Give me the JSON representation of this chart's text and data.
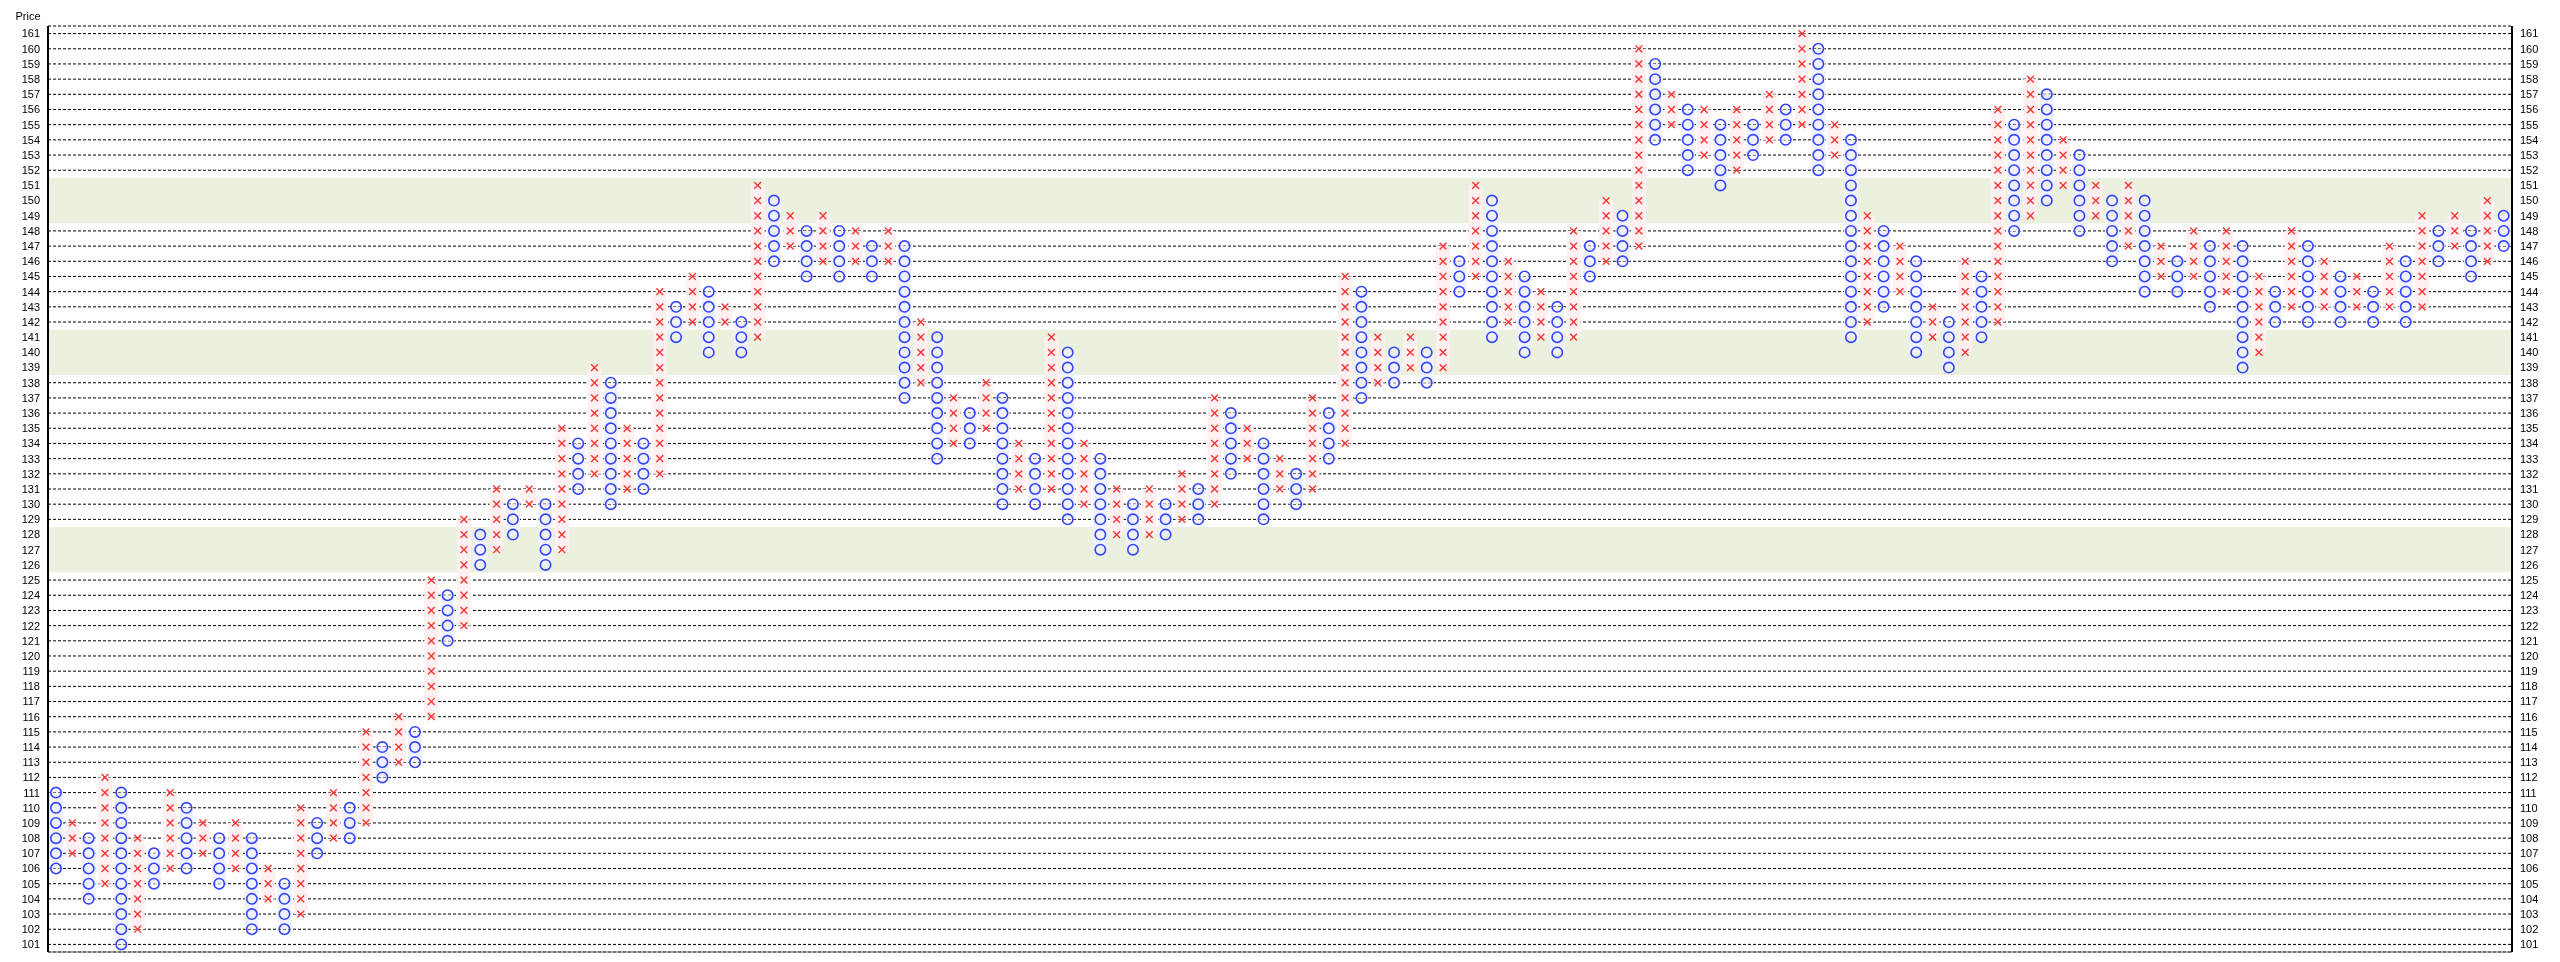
{
  "chart_data": {
    "type": "bar",
    "ylabel": "Price",
    "categories": [
      null,
      null,
      null,
      null,
      null,
      null,
      null,
      null,
      null,
      null,
      null,
      null,
      null,
      null,
      null,
      null,
      null,
      null,
      null,
      null,
      null,
      null,
      null,
      null,
      null,
      null,
      null,
      null,
      null,
      null,
      null,
      null,
      null,
      null,
      null,
      null,
      null,
      null,
      null,
      null,
      null,
      null,
      null,
      null,
      null,
      null,
      null,
      null,
      null,
      null,
      null,
      null,
      null,
      null,
      null,
      null,
      null,
      null,
      null,
      null,
      null,
      null,
      null,
      null,
      null,
      null,
      null,
      null,
      null,
      null,
      null,
      null,
      null,
      null,
      null,
      null,
      null,
      null,
      null,
      null,
      null,
      null,
      null,
      null,
      null,
      null,
      null,
      null,
      null,
      null,
      null,
      null,
      null,
      null,
      null,
      null,
      null,
      null,
      null,
      null,
      null,
      null,
      null,
      null,
      null,
      null,
      null,
      null,
      null,
      null,
      null,
      null,
      null,
      null,
      null,
      null,
      null,
      null,
      null,
      null,
      null,
      null,
      null,
      null,
      null,
      null,
      null,
      null,
      null,
      null,
      null,
      null,
      null,
      null,
      null,
      null,
      null,
      null,
      null,
      null,
      null,
      null,
      null,
      null,
      null,
      null,
      null,
      null,
      null,
      null,
      null
    ],
    "series": [
      {
        "color": "#ff3333",
        "marker": "cross",
        "base": [
          null,
          107,
          null,
          105,
          null,
          102,
          null,
          106,
          null,
          107,
          null,
          106,
          null,
          104,
          null,
          103,
          null,
          108,
          null,
          109,
          null,
          113,
          null,
          116,
          null,
          122,
          null,
          127,
          null,
          130,
          null,
          127,
          null,
          132,
          null,
          131,
          null,
          132,
          null,
          142,
          null,
          142,
          null,
          141,
          null,
          147,
          null,
          146,
          null,
          146,
          null,
          146,
          null,
          138,
          null,
          134,
          null,
          135,
          null,
          131,
          null,
          131,
          null,
          130,
          null,
          128,
          null,
          128,
          null,
          129,
          null,
          130,
          null,
          133,
          null,
          131,
          null,
          131,
          null,
          134,
          null,
          138,
          null,
          139,
          null,
          139,
          null,
          145,
          null,
          142,
          null,
          141,
          null,
          141,
          null,
          146,
          null,
          147,
          null,
          155,
          null,
          153,
          null,
          152,
          null,
          154,
          null,
          155,
          null,
          153,
          null,
          142,
          null,
          144,
          null,
          141,
          null,
          140,
          null,
          142,
          null,
          149,
          null,
          151,
          null,
          149,
          null,
          147,
          null,
          145,
          null,
          145,
          null,
          144,
          null,
          140,
          null,
          143,
          null,
          143,
          null,
          143,
          null,
          143,
          null,
          143,
          null,
          147,
          null,
          146,
          null
        ],
        "values": [
          null,
          2,
          null,
          7,
          null,
          6,
          null,
          5,
          null,
          2,
          null,
          3,
          null,
          2,
          null,
          7,
          null,
          3,
          null,
          6,
          null,
          3,
          null,
          9,
          null,
          7,
          null,
          4,
          null,
          1,
          null,
          8,
          null,
          7,
          null,
          4,
          null,
          12,
          null,
          3,
          null,
          1,
          null,
          10,
          null,
          2,
          null,
          3,
          null,
          2,
          null,
          2,
          null,
          4,
          null,
          3,
          null,
          3,
          null,
          3,
          null,
          10,
          null,
          4,
          null,
          3,
          null,
          3,
          null,
          3,
          null,
          7,
          null,
          2,
          null,
          2,
          null,
          6,
          null,
          11,
          null,
          3,
          null,
          2,
          null,
          8,
          null,
          6,
          null,
          4,
          null,
          3,
          null,
          7,
          null,
          4,
          null,
          13,
          null,
          2,
          null,
          3,
          null,
          4,
          null,
          3,
          null,
          6,
          null,
          2,
          null,
          7,
          null,
          3,
          null,
          2,
          null,
          6,
          null,
          14,
          null,
          9,
          null,
          3,
          null,
          2,
          null,
          4,
          null,
          2,
          null,
          3,
          null,
          4,
          null,
          5,
          null,
          5,
          null,
          3,
          null,
          2,
          null,
          4,
          null,
          6,
          null,
          2,
          null,
          4,
          null
        ]
      },
      {
        "color": "#3344ff",
        "marker": "circle",
        "base": [
          106,
          null,
          104,
          null,
          101,
          null,
          105,
          null,
          106,
          null,
          105,
          null,
          102,
          null,
          102,
          null,
          107,
          null,
          108,
          null,
          112,
          null,
          113,
          null,
          121,
          null,
          126,
          null,
          128,
          null,
          126,
          null,
          131,
          null,
          130,
          null,
          131,
          null,
          141,
          null,
          140,
          null,
          140,
          null,
          146,
          null,
          145,
          null,
          145,
          null,
          145,
          null,
          137,
          null,
          133,
          null,
          134,
          null,
          130,
          null,
          130,
          null,
          129,
          null,
          127,
          null,
          127,
          null,
          128,
          null,
          129,
          null,
          132,
          null,
          129,
          null,
          130,
          null,
          133,
          null,
          137,
          null,
          138,
          null,
          138,
          null,
          144,
          null,
          141,
          null,
          140,
          null,
          140,
          null,
          145,
          null,
          146,
          null,
          154,
          null,
          152,
          null,
          151,
          null,
          153,
          null,
          154,
          null,
          152,
          null,
          141,
          null,
          143,
          null,
          140,
          null,
          139,
          null,
          141,
          null,
          148,
          null,
          150,
          null,
          148,
          null,
          146,
          null,
          144,
          null,
          144,
          null,
          143,
          null,
          139,
          null,
          142,
          null,
          142,
          null,
          142,
          null,
          142,
          null,
          142,
          null,
          146,
          null,
          145,
          null,
          147
        ],
        "values": [
          5,
          null,
          4,
          null,
          10,
          null,
          2,
          null,
          4,
          null,
          3,
          null,
          6,
          null,
          3,
          null,
          2,
          null,
          2,
          null,
          2,
          null,
          2,
          null,
          3,
          null,
          2,
          null,
          2,
          null,
          4,
          null,
          3,
          null,
          8,
          null,
          3,
          null,
          2,
          null,
          4,
          null,
          2,
          null,
          4,
          null,
          3,
          null,
          3,
          null,
          2,
          null,
          10,
          null,
          8,
          null,
          2,
          null,
          7,
          null,
          3,
          null,
          11,
          null,
          6,
          null,
          3,
          null,
          2,
          null,
          2,
          null,
          4,
          null,
          5,
          null,
          2,
          null,
          3,
          null,
          7,
          null,
          2,
          null,
          2,
          null,
          2,
          null,
          9,
          null,
          5,
          null,
          3,
          null,
          2,
          null,
          3,
          null,
          5,
          null,
          4,
          null,
          4,
          null,
          2,
          null,
          2,
          null,
          8,
          null,
          13,
          null,
          5,
          null,
          6,
          null,
          3,
          null,
          4,
          null,
          7,
          null,
          7,
          null,
          5,
          null,
          4,
          null,
          6,
          null,
          2,
          null,
          4,
          null,
          8,
          null,
          2,
          null,
          5,
          null,
          3,
          null,
          2,
          null,
          4,
          null,
          2,
          null,
          3,
          null,
          2
        ]
      }
    ],
    "ylim": [
      100.5,
      161.5
    ],
    "yticks": [
      101,
      102,
      103,
      104,
      105,
      106,
      107,
      108,
      109,
      110,
      111,
      112,
      113,
      114,
      115,
      116,
      117,
      118,
      119,
      120,
      121,
      122,
      123,
      124,
      125,
      126,
      127,
      128,
      129,
      130,
      131,
      132,
      133,
      134,
      135,
      136,
      137,
      138,
      139,
      140,
      141,
      142,
      143,
      144,
      145,
      146,
      147,
      148,
      149,
      150,
      151,
      152,
      153,
      154,
      155,
      156,
      157,
      158,
      159,
      160,
      161
    ],
    "y2lim": [
      100.5,
      161.5
    ],
    "y2ticks": [
      101,
      102,
      103,
      104,
      105,
      106,
      107,
      108,
      109,
      110,
      111,
      112,
      113,
      114,
      115,
      116,
      117,
      118,
      119,
      120,
      121,
      122,
      123,
      124,
      125,
      126,
      127,
      128,
      129,
      130,
      131,
      132,
      133,
      134,
      135,
      136,
      137,
      138,
      139,
      140,
      141,
      142,
      143,
      144,
      145,
      146,
      147,
      148,
      149,
      150,
      151,
      152,
      153,
      154,
      155,
      156,
      157,
      158,
      159,
      160,
      161
    ],
    "bands": [
      {
        "axis": "y",
        "from": 148.5,
        "to": 151.5,
        "color": "#ebf1de"
      },
      {
        "axis": "y",
        "from": 138.5,
        "to": 141.5,
        "color": "#ebf1de"
      },
      {
        "axis": "y",
        "from": 125.5,
        "to": 128.5,
        "color": "#ebf1de"
      }
    ],
    "grid": "y",
    "tick_labels": "y"
  }
}
